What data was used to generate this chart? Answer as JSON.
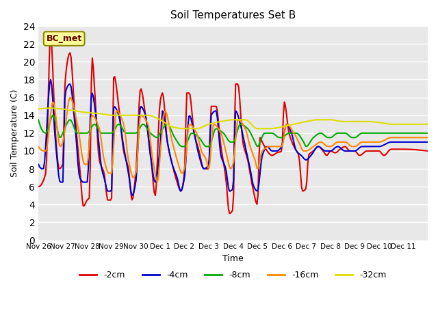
{
  "title": "Soil Temperatures Set B",
  "xlabel": "Time",
  "ylabel": "Soil Temperature (C)",
  "ylim": [
    0,
    24
  ],
  "yticks": [
    0,
    2,
    4,
    6,
    8,
    10,
    12,
    14,
    16,
    18,
    20,
    22,
    24
  ],
  "annotation": "BC_met",
  "bg_color": "#e8e8e8",
  "line_colors": {
    "-2cm": "#dd0000",
    "-4cm": "#0000dd",
    "-8cm": "#00aa00",
    "-16cm": "#ff8800",
    "-32cm": "#dddd00"
  },
  "legend_labels": [
    "-2cm",
    "-4cm",
    "-8cm",
    "-16cm",
    "-32cm"
  ],
  "x_tick_labels": [
    "Nov 26",
    "Nov 27",
    "Nov 28",
    "Nov 29",
    "Nov 30",
    "Dec 1",
    "Dec 2",
    "Dec 3",
    "Dec 4",
    "Dec 5",
    "Dec 6",
    "Dec 7",
    "Dec 8",
    "Dec 9",
    "Dec 10",
    "Dec 11"
  ],
  "n_points": 384,
  "days": 16
}
